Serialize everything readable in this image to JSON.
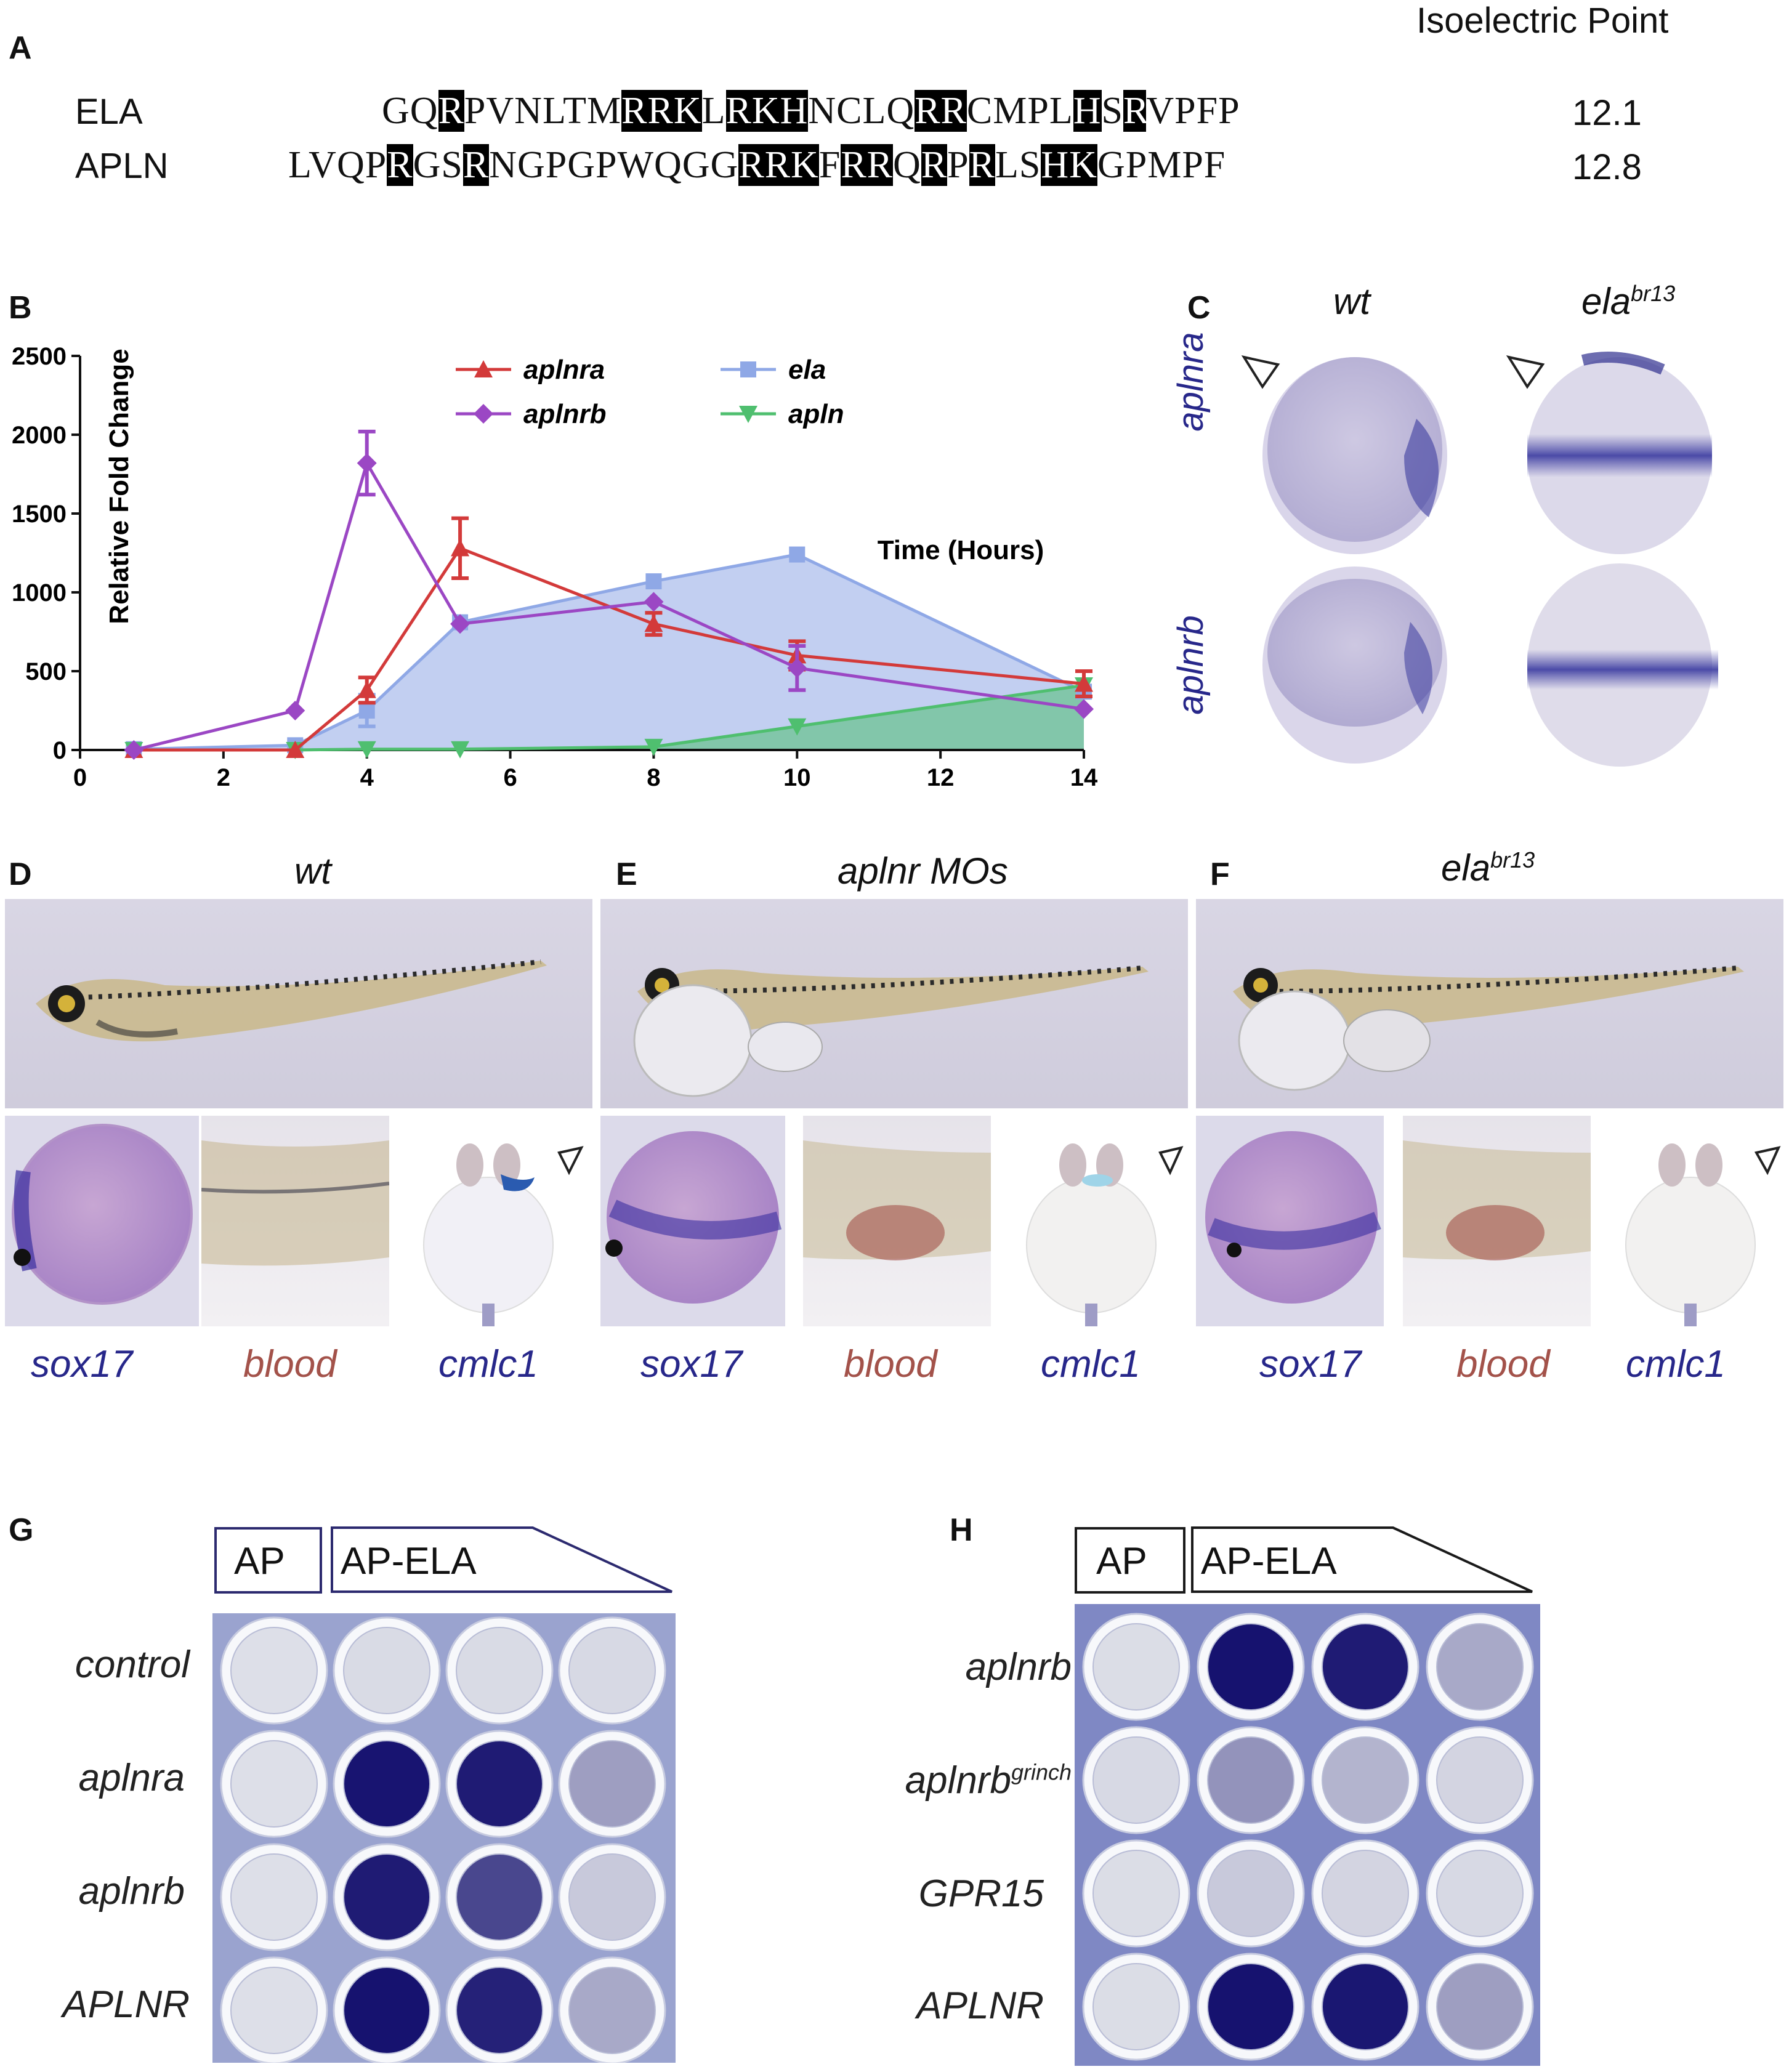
{
  "panels": {
    "A": "A",
    "B": "B",
    "C": "C",
    "D": "D",
    "E": "E",
    "F": "F",
    "G": "G",
    "H": "H"
  },
  "panelA": {
    "header": "Isoelectric Point",
    "rows": [
      {
        "name": "ELA",
        "segments": [
          {
            "t": "GQ",
            "h": false
          },
          {
            "t": "R",
            "h": true
          },
          {
            "t": "PVNLTM",
            "h": false
          },
          {
            "t": "RRK",
            "h": true
          },
          {
            "t": "L",
            "h": false
          },
          {
            "t": "RKH",
            "h": true
          },
          {
            "t": "NCLQ",
            "h": false
          },
          {
            "t": "RR",
            "h": true
          },
          {
            "t": "CMPL",
            "h": false
          },
          {
            "t": "H",
            "h": true
          },
          {
            "t": "S",
            "h": false
          },
          {
            "t": "R",
            "h": true
          },
          {
            "t": "VPFP",
            "h": false
          }
        ],
        "pi": "12.1"
      },
      {
        "name": "APLN",
        "segments": [
          {
            "t": "LVQP",
            "h": false
          },
          {
            "t": "R",
            "h": true
          },
          {
            "t": "GS",
            "h": false
          },
          {
            "t": "R",
            "h": true
          },
          {
            "t": "NGPGPWQGG",
            "h": false
          },
          {
            "t": "RRK",
            "h": true
          },
          {
            "t": "F",
            "h": false
          },
          {
            "t": "RR",
            "h": true
          },
          {
            "t": "Q",
            "h": false
          },
          {
            "t": "R",
            "h": true
          },
          {
            "t": "P",
            "h": false
          },
          {
            "t": "R",
            "h": true
          },
          {
            "t": "LS",
            "h": false
          },
          {
            "t": "HK",
            "h": true
          },
          {
            "t": "GPMPF",
            "h": false
          }
        ],
        "pi": "12.8"
      }
    ]
  },
  "chart_data": {
    "type": "line",
    "title": "",
    "xlabel": "Time (Hours)",
    "ylabel": "Relative Fold Change",
    "xlim": [
      0,
      14
    ],
    "ylim": [
      0,
      2500
    ],
    "xticks": [
      0,
      2,
      4,
      6,
      8,
      10,
      12,
      14
    ],
    "yticks": [
      0,
      500,
      1000,
      1500,
      2000,
      2500
    ],
    "legend_position": "top",
    "series": [
      {
        "name": "ela",
        "color": "#8fa8e6",
        "marker": "square",
        "area": true,
        "points": [
          [
            0.75,
            5
          ],
          [
            3,
            30
          ],
          [
            4,
            250
          ],
          [
            5.3,
            810
          ],
          [
            8,
            1070
          ],
          [
            10,
            1240
          ],
          [
            14,
            370
          ]
        ],
        "errors": [
          0,
          0,
          100,
          0,
          0,
          0,
          0
        ]
      },
      {
        "name": "apln",
        "color": "#4fbf6f",
        "marker": "triangle-down",
        "area": true,
        "points": [
          [
            0.75,
            0
          ],
          [
            3,
            0
          ],
          [
            4,
            5
          ],
          [
            5.3,
            5
          ],
          [
            8,
            20
          ],
          [
            10,
            150
          ],
          [
            14,
            410
          ]
        ],
        "errors": [
          0,
          0,
          0,
          0,
          0,
          0,
          0
        ]
      },
      {
        "name": "aplnra",
        "color": "#d33a3a",
        "marker": "triangle-up",
        "area": false,
        "points": [
          [
            0.75,
            0
          ],
          [
            3,
            0
          ],
          [
            4,
            380
          ],
          [
            5.3,
            1280
          ],
          [
            8,
            800
          ],
          [
            10,
            600
          ],
          [
            14,
            420
          ]
        ],
        "errors": [
          0,
          0,
          80,
          190,
          70,
          90,
          80
        ]
      },
      {
        "name": "aplnrb",
        "color": "#9b47c4",
        "marker": "diamond",
        "area": false,
        "points": [
          [
            0.75,
            0
          ],
          [
            3,
            250
          ],
          [
            4,
            1820
          ],
          [
            5.3,
            800
          ],
          [
            8,
            940
          ],
          [
            10,
            520
          ],
          [
            14,
            260
          ]
        ],
        "errors": [
          0,
          0,
          200,
          0,
          0,
          140,
          0
        ]
      }
    ]
  },
  "panelC": {
    "col_wt": "wt",
    "col_mut_base": "ela",
    "col_mut_sup": "br13",
    "row1": "aplnra",
    "row2": "aplnrb"
  },
  "panelD": {
    "title": "wt",
    "sox17": "sox17",
    "blood": "blood",
    "cmlc1": "cmlc1"
  },
  "panelE": {
    "title": "aplnr MOs",
    "sox17": "sox17",
    "blood": "blood",
    "cmlc1": "cmlc1"
  },
  "panelF": {
    "title_base": "ela",
    "title_sup": "br13",
    "sox17": "sox17",
    "blood": "blood",
    "cmlc1": "cmlc1"
  },
  "panelG": {
    "ap": "AP",
    "ap_ela": "AP-ELA",
    "rows": [
      "control",
      "aplnra",
      "aplnrb",
      "APLNR"
    ],
    "intensity": [
      [
        0.05,
        0.07,
        0.07,
        0.08
      ],
      [
        0.05,
        0.98,
        0.95,
        0.35
      ],
      [
        0.05,
        0.95,
        0.75,
        0.15
      ],
      [
        0.05,
        0.99,
        0.92,
        0.3
      ]
    ]
  },
  "panelH": {
    "ap": "AP",
    "ap_ela": "AP-ELA",
    "rows": [
      {
        "base": "aplnrb",
        "sup": ""
      },
      {
        "base": "aplnrb",
        "sup": "grinch"
      },
      {
        "base": "GPR15",
        "sup": ""
      },
      {
        "base": "APLNR",
        "sup": ""
      }
    ],
    "intensity": [
      [
        0.06,
        0.99,
        0.95,
        0.3
      ],
      [
        0.08,
        0.4,
        0.25,
        0.1
      ],
      [
        0.06,
        0.15,
        0.1,
        0.08
      ],
      [
        0.06,
        0.99,
        0.97,
        0.35
      ]
    ]
  },
  "colors": {
    "stain_blue": "#27278a",
    "blood_red": "#a3524a",
    "plate_blue": "#6a73b8"
  }
}
